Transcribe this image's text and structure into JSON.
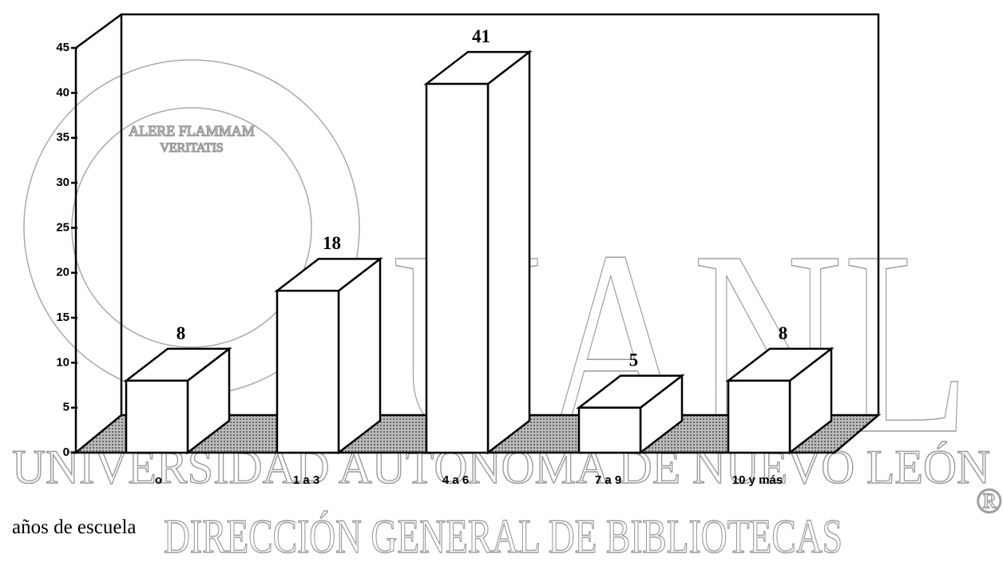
{
  "chart_data": {
    "type": "bar3d",
    "categories": [
      "o",
      "1 a 3",
      "4 a 6",
      "7 a 9",
      "10 y más"
    ],
    "values": [
      8,
      18,
      41,
      5,
      8
    ],
    "ylim": [
      0,
      45
    ],
    "yticks": [
      0,
      5,
      10,
      15,
      20,
      25,
      30,
      35,
      40,
      45
    ],
    "x_label": "años de escuela",
    "color": "#ffffff"
  },
  "watermark": {
    "logo": "UANL",
    "university": "UNIVERSIDAD AUTÓNOMA DE NUEVO LEÓN",
    "department": "DIRECCIÓN GENERAL DE BIBLIOTECAS",
    "registered": "®",
    "motto": [
      "ALERE FLAMMAM",
      "VERITATIS"
    ]
  }
}
